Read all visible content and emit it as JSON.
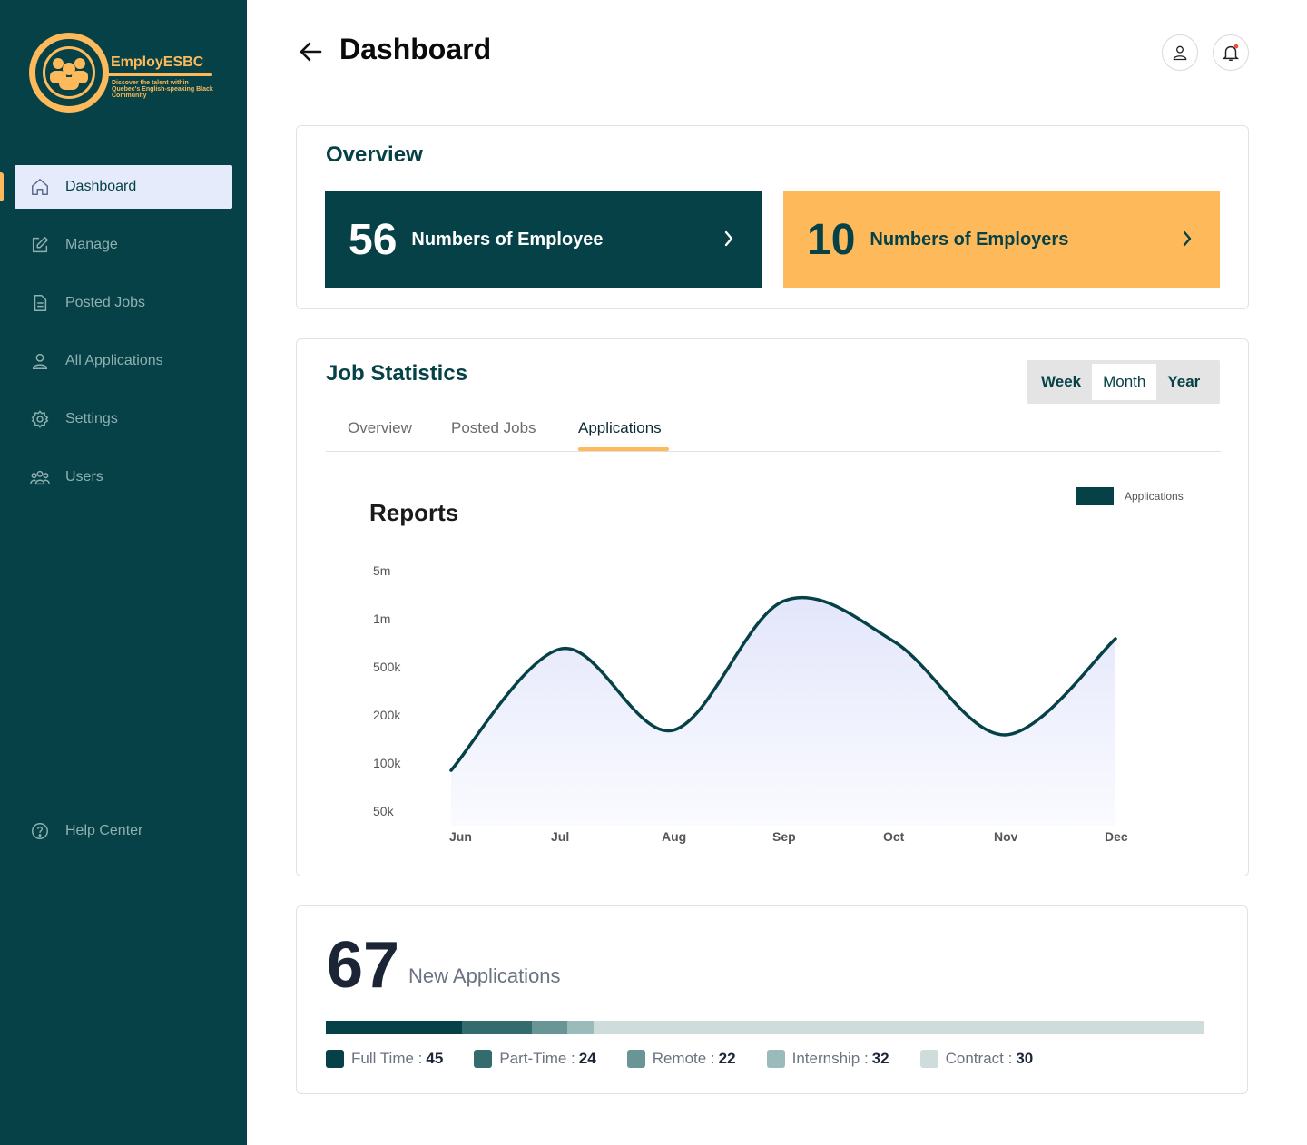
{
  "brand": {
    "name": "EmployESBC",
    "tagline": "Discover the talent within Quebec's English-speaking Black Community"
  },
  "sidebar": {
    "items": [
      {
        "label": "Dashboard",
        "icon": "home-icon",
        "active": true
      },
      {
        "label": "Manage",
        "icon": "edit-icon"
      },
      {
        "label": "Posted Jobs",
        "icon": "document-icon"
      },
      {
        "label": "All Applications",
        "icon": "user-icon"
      },
      {
        "label": "Settings",
        "icon": "gear-icon"
      },
      {
        "label": "Users",
        "icon": "users-icon"
      }
    ],
    "help": {
      "label": "Help Center",
      "icon": "help-icon"
    }
  },
  "header": {
    "title": "Dashboard"
  },
  "overview": {
    "title": "Overview",
    "employees": {
      "count": "56",
      "label": "Numbers of Employee"
    },
    "employers": {
      "count": "10",
      "label": "Numbers of Employers"
    }
  },
  "job_statistics": {
    "title": "Job Statistics",
    "periods": [
      "Week",
      "Month",
      "Year"
    ],
    "selected_period": "Month",
    "tabs": [
      "Overview",
      "Posted Jobs",
      "Applications"
    ],
    "active_tab": "Applications",
    "reports_title": "Reports",
    "legend": "Applications"
  },
  "chart_data": {
    "type": "area",
    "title": "Reports",
    "x": [
      "Jun",
      "Jul",
      "Aug",
      "Sep",
      "Oct",
      "Nov",
      "Dec"
    ],
    "y_ticks": [
      "5m",
      "1m",
      "500k",
      "200k",
      "100k",
      "50k"
    ],
    "series": [
      {
        "name": "Applications",
        "values": [
          90000,
          650000,
          160000,
          1800000,
          720000,
          150000,
          750000
        ]
      }
    ],
    "y_scale": "log",
    "ylim": [
      50000,
      5000000
    ],
    "legend_position": "top-right",
    "grid": false
  },
  "applications": {
    "count": "67",
    "label": "New Applications",
    "breakdown": [
      {
        "label": "Full Time",
        "value": "45",
        "color": "#054146"
      },
      {
        "label": "Part-Time",
        "value": "24",
        "color": "#346b6e"
      },
      {
        "label": "Remote",
        "value": "22",
        "color": "#6a9597"
      },
      {
        "label": "Internship",
        "value": "32",
        "color": "#9bbbbb"
      },
      {
        "label": "Contract",
        "value": "30",
        "color": "#cfdcdc"
      }
    ],
    "bar_fractions": [
      0.155,
      0.08,
      0.04,
      0.03,
      0.695
    ]
  }
}
